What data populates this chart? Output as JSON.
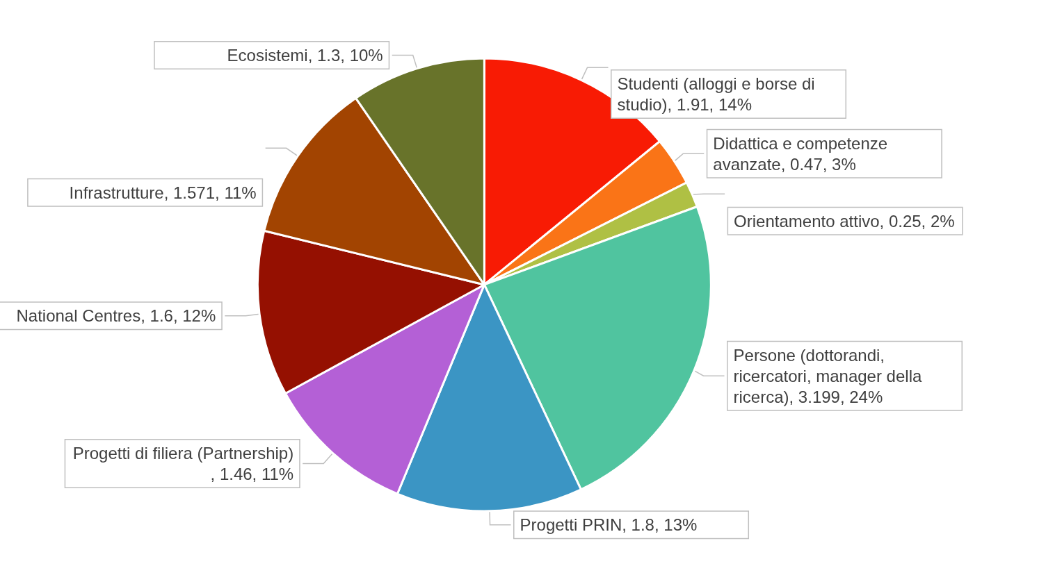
{
  "chart_data": {
    "type": "pie",
    "categories": [
      "Studenti (alloggi e borse di studio)",
      "Didattica e competenze avanzate",
      "Orientamento attivo",
      "Persone (dottorandi, ricercatori, manager della ricerca)",
      "Progetti PRIN",
      "Progetti di filiera (Partnership)",
      "National Centres",
      "Infrastrutture",
      "Ecosistemi"
    ],
    "values": [
      1.91,
      0.47,
      0.25,
      3.199,
      1.8,
      1.46,
      1.6,
      1.571,
      1.3
    ],
    "value_labels": [
      ", 1.91, 14%",
      ", 0.47, 3%",
      ", 0.25, 2%",
      ", 3.199, 24%",
      ", 1.8, 13%",
      ", 1.46, 11%",
      ", 1.6, 12%",
      ", 1.571, 11%",
      ", 1.3, 10%"
    ],
    "colors": [
      "#f81b04",
      "#fa7417",
      "#afc044",
      "#50c49f",
      "#3b95c4",
      "#b460d6",
      "#951001",
      "#a24401",
      "#68732a"
    ],
    "legend": false
  }
}
